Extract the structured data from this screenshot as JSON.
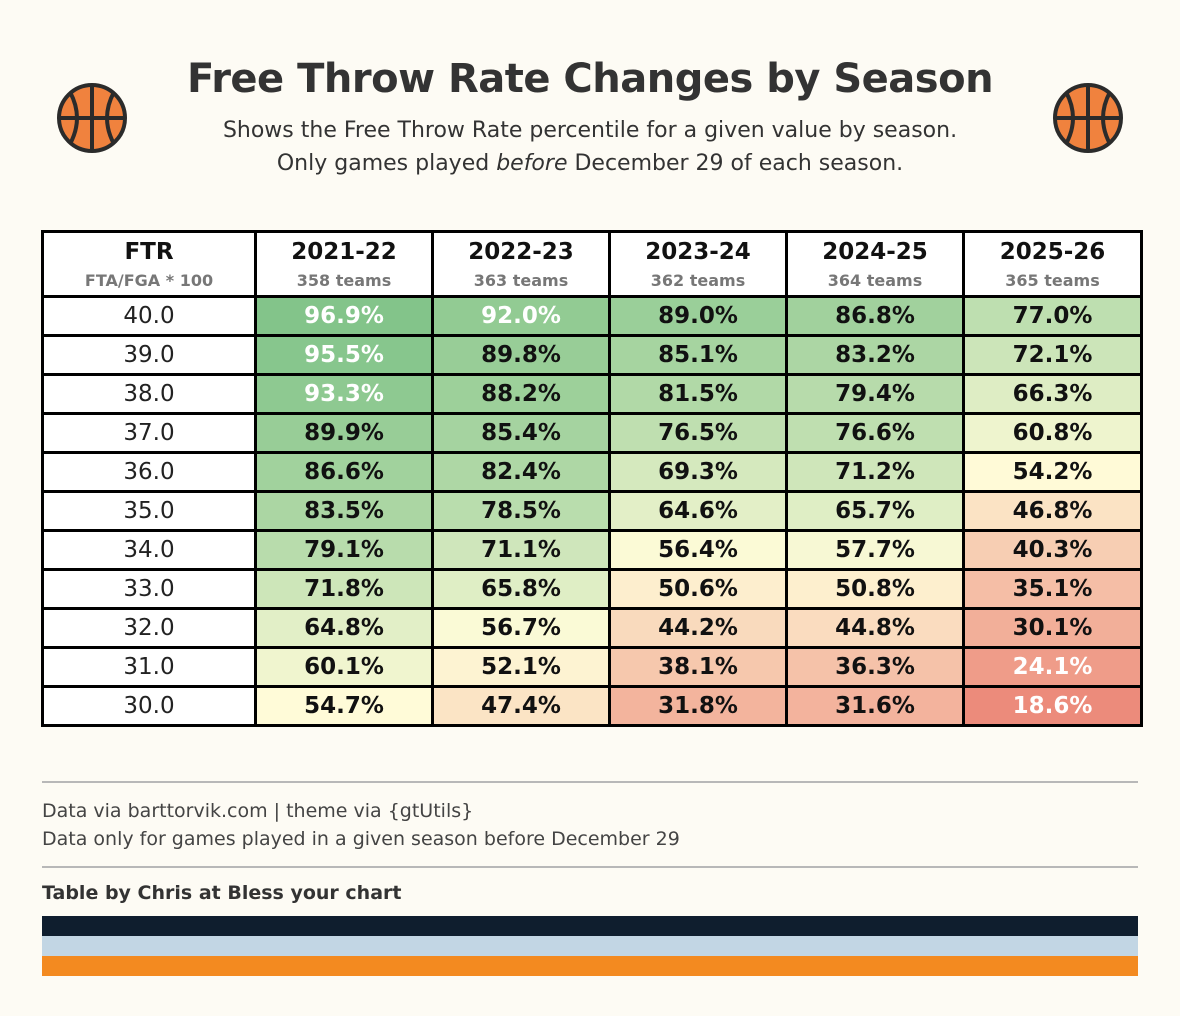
{
  "header": {
    "title": "Free Throw Rate Changes by Season",
    "subtitle_line1": "Shows the Free Throw Rate percentile for a given value by season.",
    "subtitle_line2_pre": "Only games played ",
    "subtitle_line2_em": "before",
    "subtitle_line2_post": " December 29 of each season."
  },
  "icons": [
    "basketball-icon",
    "basketball-icon"
  ],
  "chart_data": {
    "type": "table",
    "title": "Free Throw Rate Changes by Season",
    "row_header": {
      "label": "FTR",
      "sublabel": "FTA/FGA * 100"
    },
    "columns": [
      {
        "label": "2021-22",
        "sublabel": "358 teams"
      },
      {
        "label": "2022-23",
        "sublabel": "363 teams"
      },
      {
        "label": "2023-24",
        "sublabel": "362 teams"
      },
      {
        "label": "2024-25",
        "sublabel": "364 teams"
      },
      {
        "label": "2025-26",
        "sublabel": "365 teams"
      }
    ],
    "rows": [
      {
        "ftr": "40.0",
        "values": [
          "96.9%",
          "92.0%",
          "89.0%",
          "86.8%",
          "77.0%"
        ]
      },
      {
        "ftr": "39.0",
        "values": [
          "95.5%",
          "89.8%",
          "85.1%",
          "83.2%",
          "72.1%"
        ]
      },
      {
        "ftr": "38.0",
        "values": [
          "93.3%",
          "88.2%",
          "81.5%",
          "79.4%",
          "66.3%"
        ]
      },
      {
        "ftr": "37.0",
        "values": [
          "89.9%",
          "85.4%",
          "76.5%",
          "76.6%",
          "60.8%"
        ]
      },
      {
        "ftr": "36.0",
        "values": [
          "86.6%",
          "82.4%",
          "69.3%",
          "71.2%",
          "54.2%"
        ]
      },
      {
        "ftr": "35.0",
        "values": [
          "83.5%",
          "78.5%",
          "64.6%",
          "65.7%",
          "46.8%"
        ]
      },
      {
        "ftr": "34.0",
        "values": [
          "79.1%",
          "71.1%",
          "56.4%",
          "57.7%",
          "40.3%"
        ]
      },
      {
        "ftr": "33.0",
        "values": [
          "71.8%",
          "65.8%",
          "50.6%",
          "50.8%",
          "35.1%"
        ]
      },
      {
        "ftr": "32.0",
        "values": [
          "64.8%",
          "56.7%",
          "44.2%",
          "44.8%",
          "30.1%"
        ]
      },
      {
        "ftr": "31.0",
        "values": [
          "60.1%",
          "52.1%",
          "38.1%",
          "36.3%",
          "24.1%"
        ]
      },
      {
        "ftr": "30.0",
        "values": [
          "54.7%",
          "47.4%",
          "31.8%",
          "31.6%",
          "18.6%"
        ]
      }
    ],
    "color_scale": {
      "low": "#ec8b7b",
      "mid": "#fffcd9",
      "high": "#83c48a",
      "domain": [
        18.6,
        55,
        96.9
      ]
    }
  },
  "footer": {
    "note1": "Data via barttorvik.com | theme via {gtUtils}",
    "note2": "Data only for games played in a given season before December 29",
    "credit": "Table by Chris at Bless your chart"
  },
  "colors": {
    "background": "#fdfbf4",
    "band_dark": "#0f1e2e",
    "band_light": "#c2d6e4",
    "band_orange": "#f38a20",
    "ball_orange": "#f0823e",
    "ball_line": "#2b2b2b"
  }
}
